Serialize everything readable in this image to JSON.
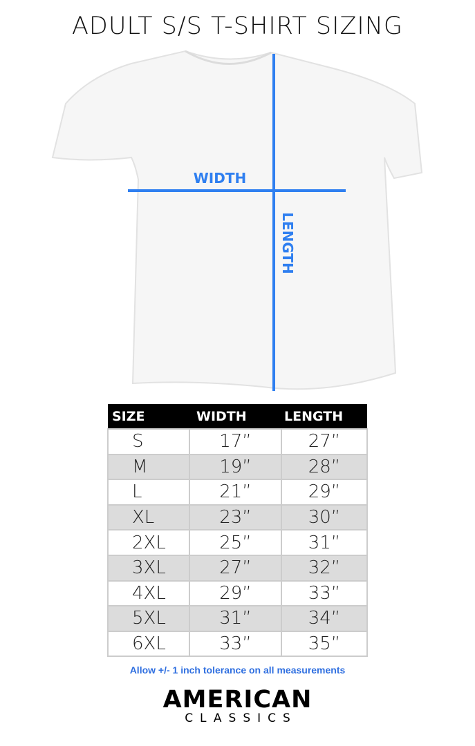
{
  "title": "ADULT S/S T-SHIRT SIZING",
  "diagram": {
    "width_label": "WIDTH",
    "length_label": "LENGTH",
    "line_color": "#2f7ff0"
  },
  "table": {
    "headers": [
      "SIZE",
      "WIDTH",
      "LENGTH"
    ],
    "rows": [
      [
        "S",
        "17”",
        "27”"
      ],
      [
        "M",
        "19”",
        "28”"
      ],
      [
        "L",
        "21”",
        "29”"
      ],
      [
        "XL",
        "23”",
        "30”"
      ],
      [
        "2XL",
        "25”",
        "31”"
      ],
      [
        "3XL",
        "27”",
        "32”"
      ],
      [
        "4XL",
        "29”",
        "33”"
      ],
      [
        "5XL",
        "31”",
        "34”"
      ],
      [
        "6XL",
        "33”",
        "35”"
      ]
    ]
  },
  "note": "Allow +/- 1 inch tolerance on all measurements",
  "logo": {
    "line1": "AMERICAN",
    "line2": "CLASSICS"
  }
}
